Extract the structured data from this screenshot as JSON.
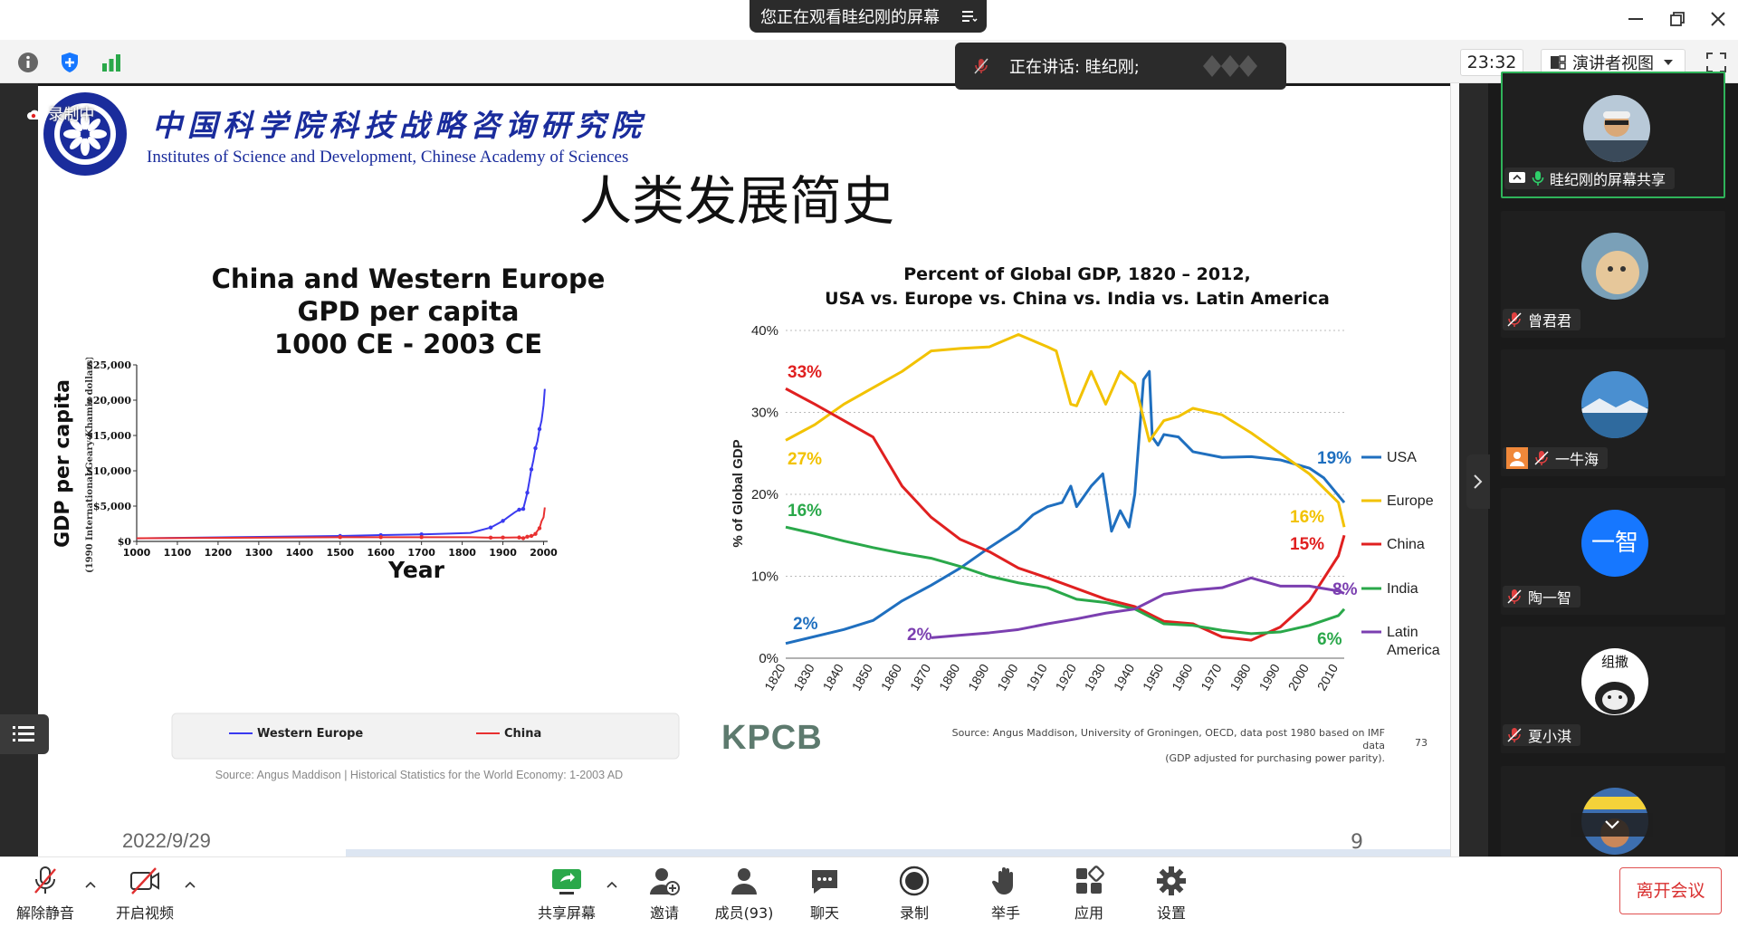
{
  "window": {
    "share_banner": "您正在观看眭纪刚的屏幕",
    "speaking_label": "正在讲话: 眭纪刚;"
  },
  "toolbar": {
    "clock": "23:32",
    "view_label": "演讲者视图"
  },
  "slide": {
    "recording_label": "录制中",
    "institute_cn": "中国科学院科技战略咨询研究院",
    "institute_en": "Institutes of Science and Development, Chinese Academy of Sciences",
    "title": "人类发展简史",
    "date": "2022/9/29",
    "page": "9",
    "logo_text": "KPCB"
  },
  "chart_data": [
    {
      "type": "line",
      "title": "China and Western Europe GPD per capita 1000 CE - 2003 CE",
      "title_lines": [
        "China and Western Europe",
        "GPD per capita",
        "1000 CE - 2003 CE"
      ],
      "xlabel": "Year",
      "ylabel": "GDP per capita",
      "ylabel_sub": "(1990 International Geary-Khamis dollars)",
      "x_ticks": [
        "1000",
        "1100",
        "1200",
        "1300",
        "1400",
        "1500",
        "1600",
        "1700",
        "1800",
        "1900",
        "2000"
      ],
      "y_ticks": [
        "$0",
        "$5,000",
        "$10,000",
        "$15,000",
        "$20,000",
        "$25,000"
      ],
      "xlim": [
        1000,
        2010
      ],
      "ylim": [
        0,
        25000
      ],
      "legend_position": "bottom",
      "series": [
        {
          "name": "Western Europe",
          "color": "#3a3af0",
          "x": [
            1000,
            1500,
            1600,
            1700,
            1820,
            1870,
            1900,
            1913,
            1929,
            1940,
            1950,
            1955,
            1960,
            1965,
            1970,
            1975,
            1980,
            1985,
            1990,
            1995,
            2000,
            2003
          ],
          "y": [
            430,
            770,
            890,
            1000,
            1200,
            1960,
            2900,
            3460,
            4110,
            4500,
            4600,
            5700,
            6900,
            8500,
            10200,
            11500,
            13200,
            14200,
            15900,
            17100,
            19300,
            21600
          ]
        },
        {
          "name": "China",
          "color": "#e83030",
          "x": [
            1000,
            1500,
            1600,
            1700,
            1820,
            1870,
            1900,
            1913,
            1929,
            1940,
            1950,
            1960,
            1970,
            1975,
            1980,
            1985,
            1990,
            1995,
            2000,
            2003
          ],
          "y": [
            450,
            600,
            600,
            600,
            600,
            530,
            550,
            550,
            560,
            560,
            450,
            660,
            780,
            870,
            1060,
            1520,
            1870,
            2860,
            3420,
            4800
          ]
        }
      ],
      "source": "Source: Angus Maddison | Historical Statistics for the World Economy: 1-2003 AD"
    },
    {
      "type": "line",
      "title": "Percent of Global GDP, 1820 – 2012, USA vs. Europe vs. China vs. India vs. Latin America",
      "title_lines": [
        "Percent of Global GDP, 1820 – 2012,",
        "USA vs. Europe vs. China vs. India vs. Latin America"
      ],
      "ylabel": "% of Global GDP",
      "x_ticks": [
        "1820",
        "1830",
        "1840",
        "1850",
        "1860",
        "1870",
        "1880",
        "1890",
        "1900",
        "1910",
        "1920",
        "1930",
        "1940",
        "1950",
        "1960",
        "1970",
        "1980",
        "1990",
        "2000",
        "2010"
      ],
      "y_ticks": [
        "0%",
        "10%",
        "20%",
        "30%",
        "40%"
      ],
      "xlim": [
        1820,
        2012
      ],
      "ylim": [
        0,
        40
      ],
      "grid": true,
      "legend_position": "right",
      "series": [
        {
          "name": "USA",
          "color": "#1f6fbf",
          "start_label": "2%",
          "end_label": "19%",
          "x": [
            1820,
            1840,
            1850,
            1860,
            1870,
            1880,
            1890,
            1900,
            1905,
            1910,
            1915,
            1918,
            1920,
            1925,
            1929,
            1932,
            1935,
            1938,
            1940,
            1943,
            1945,
            1946,
            1948,
            1950,
            1955,
            1960,
            1970,
            1980,
            1990,
            2000,
            2005,
            2012
          ],
          "y": [
            1.8,
            3.5,
            4.6,
            7,
            8.9,
            11,
            13.5,
            15.8,
            17.5,
            18.5,
            19,
            21,
            18.5,
            21,
            22.5,
            15.5,
            18,
            16,
            20,
            34,
            35,
            27,
            26,
            27.3,
            27,
            25.2,
            24.5,
            24.6,
            24.2,
            23.2,
            22,
            19
          ]
        },
        {
          "name": "Europe",
          "color": "#f2c200",
          "start_label": "27%",
          "end_label": "16%",
          "x": [
            1820,
            1830,
            1840,
            1850,
            1860,
            1870,
            1880,
            1890,
            1900,
            1910,
            1913,
            1918,
            1920,
            1925,
            1930,
            1935,
            1940,
            1945,
            1950,
            1955,
            1960,
            1970,
            1980,
            1990,
            2000,
            2010,
            2012
          ],
          "y": [
            26.6,
            28.5,
            31,
            33,
            35,
            37.5,
            37.8,
            38,
            39.5,
            38,
            37.5,
            31,
            30.8,
            35,
            31,
            35,
            33.5,
            26.5,
            29,
            29.5,
            30.5,
            29.7,
            27.5,
            25,
            22.5,
            19,
            16
          ]
        },
        {
          "name": "China",
          "color": "#e02020",
          "start_label": "33%",
          "end_label": "15%",
          "x": [
            1820,
            1830,
            1840,
            1850,
            1860,
            1870,
            1880,
            1890,
            1900,
            1910,
            1920,
            1930,
            1940,
            1950,
            1960,
            1970,
            1980,
            1990,
            2000,
            2010,
            2012
          ],
          "y": [
            32.9,
            31,
            29,
            27,
            21,
            17.2,
            14.5,
            13,
            11,
            9.8,
            8.5,
            7.2,
            6.3,
            4.5,
            4.2,
            2.6,
            2.2,
            3.8,
            7,
            12.5,
            15
          ]
        },
        {
          "name": "India",
          "color": "#2aa84a",
          "start_label": "16%",
          "end_label": "6%",
          "x": [
            1820,
            1830,
            1840,
            1850,
            1860,
            1870,
            1880,
            1890,
            1900,
            1910,
            1920,
            1930,
            1940,
            1950,
            1960,
            1970,
            1980,
            1990,
            2000,
            2010,
            2012
          ],
          "y": [
            16,
            15.2,
            14.3,
            13.5,
            12.8,
            12.2,
            11.2,
            10,
            9.2,
            8.6,
            7.2,
            6.8,
            6,
            4.2,
            4,
            3.4,
            3,
            3.2,
            4,
            5.2,
            6
          ]
        },
        {
          "name": "Latin America",
          "color": "#7b3fb0",
          "start_label": "2%",
          "end_label": "8%",
          "x": [
            1870,
            1880,
            1890,
            1900,
            1910,
            1920,
            1930,
            1940,
            1950,
            1960,
            1970,
            1980,
            1990,
            2000,
            2010,
            2012
          ],
          "y": [
            2.5,
            2.8,
            3.1,
            3.5,
            4.2,
            4.8,
            5.5,
            6,
            7.8,
            8.3,
            8.6,
            9.8,
            8.8,
            8.8,
            8.2,
            7.9
          ]
        }
      ],
      "source_lines": [
        "Source: Angus Maddison, University of Groningen, OECD, data post 1980 based on IMF data",
        "(GDP adjusted for purchasing power parity)."
      ],
      "source_page": "73"
    }
  ],
  "participants": [
    {
      "name": "眭纪刚的屏幕共享",
      "muted": false,
      "active": true
    },
    {
      "name": "曾君君",
      "muted": true
    },
    {
      "name": "一牛海",
      "muted": true
    },
    {
      "name": "陶一智",
      "muted": true,
      "initials": "一智",
      "avatar_color": "#1677ff"
    },
    {
      "name": "夏小淇",
      "muted": true,
      "avatar_caption": "组撒"
    },
    {
      "name": "",
      "muted": true
    }
  ],
  "controls": {
    "unmute": "解除静音",
    "video": "开启视频",
    "share": "共享屏幕",
    "invite": "邀请",
    "members": "成员(93)",
    "chat": "聊天",
    "record": "录制",
    "raise_hand": "举手",
    "apps": "应用",
    "settings": "设置",
    "leave": "离开会议"
  }
}
